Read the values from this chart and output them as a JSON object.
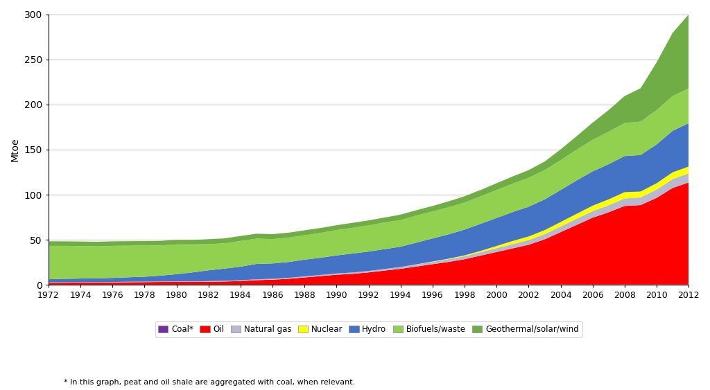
{
  "years": [
    1972,
    1973,
    1974,
    1975,
    1976,
    1977,
    1978,
    1979,
    1980,
    1981,
    1982,
    1983,
    1984,
    1985,
    1986,
    1987,
    1988,
    1989,
    1990,
    1991,
    1992,
    1993,
    1994,
    1995,
    1996,
    1997,
    1998,
    1999,
    2000,
    2001,
    2002,
    2003,
    2004,
    2005,
    2006,
    2007,
    2008,
    2009,
    2010,
    2011,
    2012
  ],
  "coal": [
    0.3,
    0.3,
    0.3,
    0.3,
    0.3,
    0.3,
    0.3,
    0.3,
    0.3,
    0.3,
    0.3,
    0.3,
    0.3,
    0.3,
    0.3,
    0.3,
    0.3,
    0.3,
    0.3,
    0.3,
    0.4,
    0.4,
    0.4,
    0.4,
    0.5,
    0.5,
    0.5,
    0.5,
    0.5,
    0.5,
    0.5,
    0.5,
    0.5,
    0.5,
    0.5,
    0.5,
    0.5,
    0.5,
    0.5,
    0.5,
    0.5
  ],
  "oil": [
    2.0,
    2.2,
    2.3,
    2.3,
    2.5,
    2.7,
    2.8,
    3.0,
    3.0,
    3.0,
    3.2,
    3.5,
    4.0,
    5.0,
    5.5,
    6.5,
    8.0,
    9.5,
    11.0,
    12.0,
    13.5,
    15.5,
    17.5,
    20.0,
    22.5,
    25.0,
    28.0,
    32.0,
    36.0,
    40.0,
    44.0,
    50.0,
    58.0,
    66.0,
    74.0,
    80.0,
    87.0,
    88.0,
    96.0,
    107.0,
    113.0
  ],
  "natural_gas": [
    0.5,
    0.5,
    0.5,
    0.5,
    0.5,
    0.5,
    0.5,
    0.5,
    0.6,
    0.6,
    0.7,
    0.8,
    0.9,
    1.0,
    1.0,
    1.1,
    1.2,
    1.3,
    1.4,
    1.5,
    1.6,
    1.8,
    2.0,
    2.3,
    2.6,
    3.0,
    3.3,
    3.7,
    4.2,
    4.7,
    5.2,
    5.7,
    6.2,
    6.8,
    7.3,
    7.8,
    8.3,
    8.5,
    9.2,
    9.8,
    10.2
  ],
  "nuclear": [
    0.0,
    0.0,
    0.0,
    0.0,
    0.0,
    0.0,
    0.0,
    0.0,
    0.0,
    0.0,
    0.0,
    0.0,
    0.0,
    0.0,
    0.0,
    0.0,
    0.0,
    0.0,
    0.0,
    0.0,
    0.0,
    0.0,
    0.0,
    0.2,
    0.4,
    0.6,
    1.0,
    1.5,
    2.5,
    3.5,
    4.0,
    4.5,
    5.0,
    5.5,
    6.0,
    6.5,
    7.0,
    6.5,
    7.0,
    7.5,
    7.5
  ],
  "hydro": [
    3.5,
    3.8,
    4.0,
    4.2,
    4.5,
    5.0,
    5.5,
    6.5,
    8.0,
    10.0,
    12.0,
    13.5,
    15.0,
    17.0,
    17.0,
    17.5,
    18.5,
    19.0,
    20.0,
    21.0,
    21.5,
    22.0,
    22.5,
    24.0,
    25.5,
    27.0,
    28.5,
    30.0,
    31.0,
    32.0,
    33.0,
    34.0,
    35.5,
    37.0,
    38.0,
    39.0,
    40.0,
    40.5,
    43.0,
    46.0,
    48.0
  ],
  "biofuels_waste": [
    37.0,
    36.5,
    36.0,
    35.5,
    35.5,
    35.0,
    34.5,
    33.5,
    33.0,
    31.0,
    29.0,
    28.0,
    28.5,
    28.0,
    27.0,
    27.0,
    27.0,
    27.5,
    28.0,
    28.5,
    29.0,
    29.5,
    29.5,
    30.0,
    30.0,
    30.0,
    30.0,
    30.5,
    31.0,
    31.5,
    32.0,
    32.5,
    33.0,
    34.0,
    35.0,
    36.0,
    36.5,
    37.0,
    38.0,
    38.5,
    38.5
  ],
  "geo_solar_wind": [
    5.0,
    5.0,
    5.0,
    5.0,
    5.0,
    5.0,
    5.0,
    5.0,
    5.0,
    5.0,
    5.5,
    5.5,
    5.5,
    5.5,
    5.5,
    5.5,
    5.5,
    5.5,
    5.5,
    5.5,
    5.5,
    5.5,
    6.0,
    6.0,
    6.0,
    6.5,
    7.0,
    7.0,
    7.5,
    8.0,
    8.5,
    9.5,
    12.0,
    15.0,
    19.0,
    24.0,
    30.0,
    37.0,
    53.0,
    70.0,
    82.0
  ],
  "colors": {
    "coal": "#7030a0",
    "oil": "#ff0000",
    "natural_gas": "#b8b8d0",
    "nuclear": "#ffff00",
    "hydro": "#4472c4",
    "biofuels_waste": "#92d050",
    "geo_solar_wind": "#70ad47"
  },
  "ylabel": "Mtoe",
  "ylim": [
    0,
    300
  ],
  "yticks": [
    0,
    50,
    100,
    150,
    200,
    250,
    300
  ],
  "footnote": "* In this graph, peat and oil shale are aggregated with coal, when relevant.",
  "legend_labels": [
    "Coal*",
    "Oil",
    "Natural gas",
    "Nuclear",
    "Hydro",
    "Biofuels/waste",
    "Geothermal/solar/wind"
  ],
  "xtick_years": [
    1972,
    1974,
    1976,
    1978,
    1980,
    1982,
    1984,
    1986,
    1988,
    1990,
    1992,
    1994,
    1996,
    1998,
    2000,
    2002,
    2004,
    2006,
    2008,
    2010,
    2012
  ]
}
